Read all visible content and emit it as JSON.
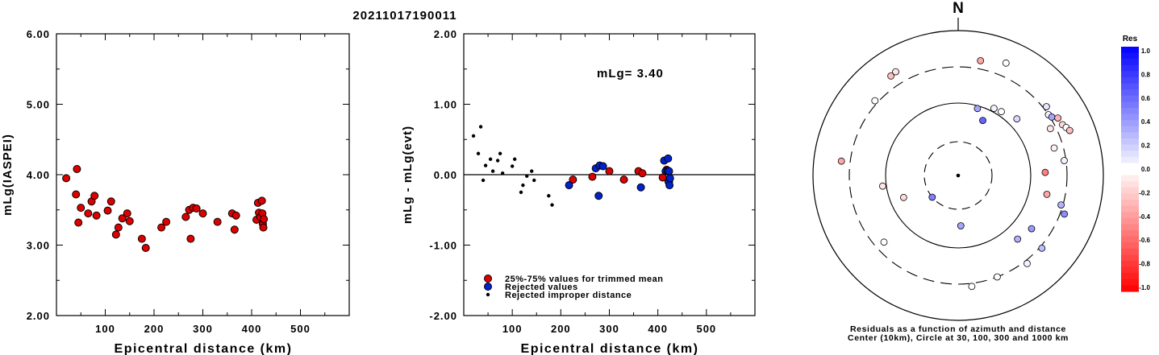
{
  "title": "20211017190011",
  "chart_data": [
    {
      "type": "scatter",
      "xlabel": "Epicentral distance (km)",
      "ylabel": "mLg(IASPEI)",
      "xlim": [
        0,
        600
      ],
      "ylim": [
        2.0,
        6.0
      ],
      "xticks": [
        "100",
        "200",
        "300",
        "400",
        "500"
      ],
      "yticks": [
        "2.00",
        "3.00",
        "4.00",
        "5.00",
        "6.00"
      ],
      "grid": false,
      "points": [
        [
          20,
          3.95
        ],
        [
          40,
          3.72
        ],
        [
          42,
          4.08
        ],
        [
          45,
          3.32
        ],
        [
          50,
          3.53
        ],
        [
          65,
          3.45
        ],
        [
          72,
          3.62
        ],
        [
          78,
          3.7
        ],
        [
          82,
          3.42
        ],
        [
          105,
          3.49
        ],
        [
          112,
          3.62
        ],
        [
          122,
          3.15
        ],
        [
          127,
          3.25
        ],
        [
          135,
          3.38
        ],
        [
          145,
          3.45
        ],
        [
          150,
          3.34
        ],
        [
          175,
          3.09
        ],
        [
          183,
          2.96
        ],
        [
          215,
          3.25
        ],
        [
          225,
          3.33
        ],
        [
          265,
          3.4
        ],
        [
          272,
          3.5
        ],
        [
          275,
          3.09
        ],
        [
          280,
          3.53
        ],
        [
          287,
          3.52
        ],
        [
          300,
          3.45
        ],
        [
          330,
          3.33
        ],
        [
          360,
          3.45
        ],
        [
          365,
          3.22
        ],
        [
          368,
          3.42
        ],
        [
          410,
          3.36
        ],
        [
          413,
          3.6
        ],
        [
          415,
          3.46
        ],
        [
          418,
          3.4
        ],
        [
          421,
          3.63
        ],
        [
          422,
          3.45
        ],
        [
          423,
          3.3
        ],
        [
          424,
          3.25
        ],
        [
          425,
          3.37
        ]
      ]
    },
    {
      "type": "scatter",
      "xlabel": "Epicentral distance (km)",
      "ylabel": "mLg - mLg(evt)",
      "xlim": [
        0,
        600
      ],
      "ylim": [
        -2.0,
        2.0
      ],
      "xticks": [
        "100",
        "200",
        "300",
        "400",
        "500"
      ],
      "yticks": [
        "-2.00",
        "-1.00",
        "0.00",
        "1.00",
        "2.00"
      ],
      "annotation": "mLg= 3.40",
      "legend": {
        "placement": "bottom-left",
        "entries": [
          {
            "label": "25%-75% values for trimmed mean",
            "color": "#dd0000"
          },
          {
            "label": "Rejected values",
            "color": "#0022cc"
          },
          {
            "label": "Rejected improper distance",
            "color": "#000000"
          }
        ]
      },
      "series": [
        {
          "values": [
            [
              225,
              -0.07
            ],
            [
              265,
              -0.03
            ],
            [
              300,
              0.05
            ],
            [
              330,
              -0.07
            ],
            [
              360,
              0.05
            ],
            [
              368,
              0.02
            ],
            [
              410,
              -0.04
            ],
            [
              418,
              0.07
            ],
            [
              423,
              -0.1
            ]
          ]
        },
        {
          "values": [
            [
              217,
              -0.15
            ],
            [
              272,
              0.09
            ],
            [
              278,
              -0.3
            ],
            [
              280,
              0.13
            ],
            [
              287,
              0.12
            ],
            [
              365,
              -0.18
            ],
            [
              413,
              0.2
            ],
            [
              416,
              0.05
            ],
            [
              420,
              0.05
            ],
            [
              421,
              0.23
            ],
            [
              422,
              -0.1
            ],
            [
              423,
              0.05
            ],
            [
              424,
              -0.15
            ],
            [
              425,
              -0.05
            ]
          ]
        },
        {
          "values": [
            [
              20,
              0.55
            ],
            [
              30,
              0.3
            ],
            [
              35,
              0.68
            ],
            [
              40,
              -0.08
            ],
            [
              45,
              0.13
            ],
            [
              55,
              0.22
            ],
            [
              60,
              0.05
            ],
            [
              70,
              0.2
            ],
            [
              75,
              0.3
            ],
            [
              80,
              0.02
            ],
            [
              100,
              0.12
            ],
            [
              105,
              0.22
            ],
            [
              118,
              -0.25
            ],
            [
              122,
              -0.15
            ],
            [
              130,
              -0.02
            ],
            [
              140,
              0.05
            ],
            [
              145,
              -0.08
            ],
            [
              175,
              -0.3
            ],
            [
              182,
              -0.43
            ]
          ]
        }
      ]
    },
    {
      "type": "polar-scatter",
      "north_label": "N",
      "caption": [
        "Residuals as a function of azimuth and distance",
        "Center (10km), Circle at 30, 100, 300 and 1000 km"
      ],
      "colorbar": {
        "title": "Res",
        "ticks": [
          "1.0",
          "0.8",
          "0.6",
          "0.4",
          "0.2",
          "0.0",
          "-0.2",
          "-0.4",
          "-0.6",
          "-0.8",
          "-1.0"
        ]
      },
      "rings_km": [
        30,
        100,
        300,
        1000
      ],
      "stations": [
        {
          "az": 326,
          "dist": 520,
          "res": -0.25
        },
        {
          "az": 329,
          "dist": 540,
          "res": -0.1
        },
        {
          "az": 11,
          "dist": 460,
          "res": -0.35
        },
        {
          "az": 23,
          "dist": 560,
          "res": 0.02
        },
        {
          "az": 312,
          "dist": 360,
          "res": 0.0
        },
        {
          "az": 52,
          "dist": 360,
          "res": 0.1
        },
        {
          "az": 56,
          "dist": 300,
          "res": 0.05
        },
        {
          "az": 58,
          "dist": 330,
          "res": 0.35
        },
        {
          "az": 60,
          "dist": 420,
          "res": -0.3
        },
        {
          "az": 64,
          "dist": 440,
          "res": -0.15
        },
        {
          "az": 66,
          "dist": 480,
          "res": 0.02
        },
        {
          "az": 68,
          "dist": 520,
          "res": -0.25
        },
        {
          "az": 16,
          "dist": 95,
          "res": 0.35
        },
        {
          "az": 24,
          "dist": 78,
          "res": 0.6
        },
        {
          "az": 28,
          "dist": 120,
          "res": 0.05
        },
        {
          "az": 34,
          "dist": 125,
          "res": 0.0
        },
        {
          "az": 46,
          "dist": 150,
          "res": 0.15
        },
        {
          "az": 63,
          "dist": 270,
          "res": -0.1
        },
        {
          "az": 74,
          "dist": 250,
          "res": -0.05
        },
        {
          "az": 82,
          "dist": 290,
          "res": 0.05
        },
        {
          "az": 88,
          "dist": 180,
          "res": -0.5
        },
        {
          "az": 102,
          "dist": 200,
          "res": -0.35
        },
        {
          "az": 106,
          "dist": 290,
          "res": 0.3
        },
        {
          "az": 110,
          "dist": 380,
          "res": 0.45
        },
        {
          "az": 126,
          "dist": 200,
          "res": 0.4
        },
        {
          "az": 137,
          "dist": 180,
          "res": 0.3
        },
        {
          "az": 131,
          "dist": 340,
          "res": 0.25
        },
        {
          "az": 142,
          "dist": 360,
          "res": 0.05
        },
        {
          "az": 159,
          "dist": 300,
          "res": 0.0
        },
        {
          "az": 173,
          "dist": 360,
          "res": 0.0
        },
        {
          "az": 177,
          "dist": 60,
          "res": 0.35
        },
        {
          "az": 230,
          "dist": 30,
          "res": 0.5
        },
        {
          "az": 248,
          "dist": 75,
          "res": -0.15
        },
        {
          "az": 228,
          "dist": 250,
          "res": 0.0
        },
        {
          "az": 262,
          "dist": 120,
          "res": -0.1
        },
        {
          "az": 277,
          "dist": 470,
          "res": -0.35
        }
      ]
    }
  ]
}
